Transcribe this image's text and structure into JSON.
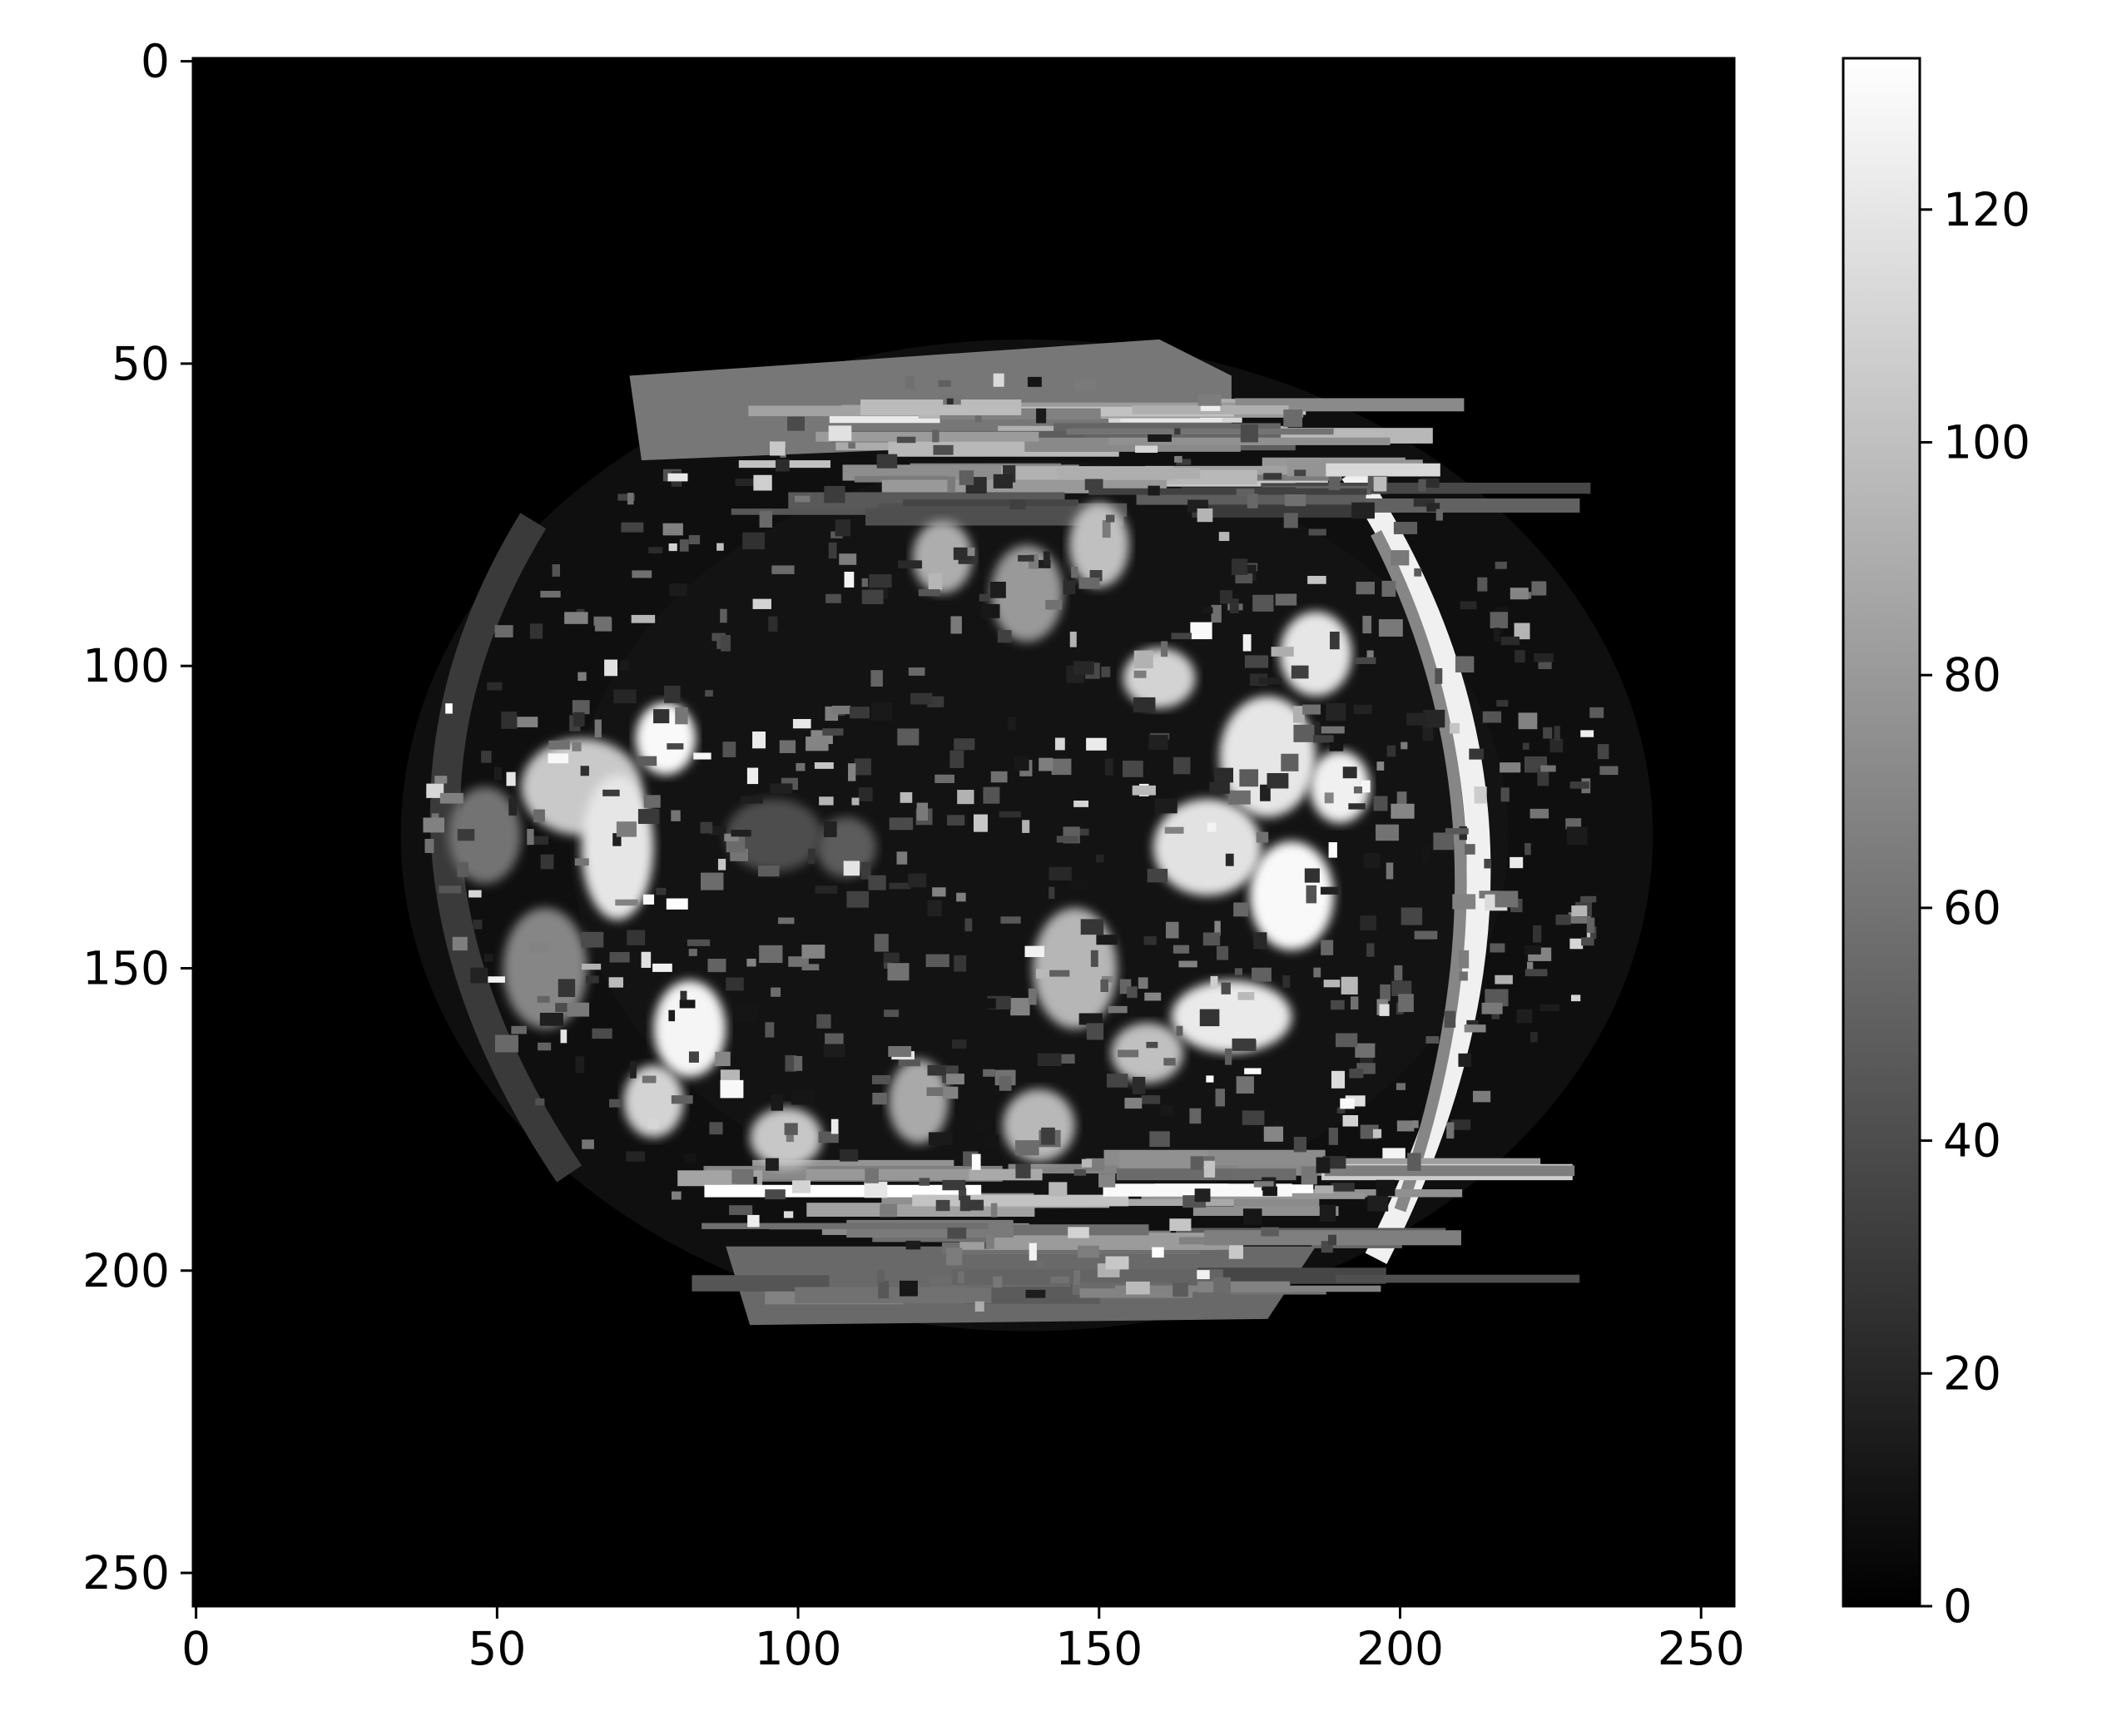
{
  "chart_data": [
    {
      "type": "heatmap",
      "title": "",
      "xlabel": "",
      "ylabel": "",
      "colormap": "gray",
      "grid": false,
      "image_shape": [
        256,
        256
      ],
      "xlim": [
        0,
        255
      ],
      "ylim": [
        255,
        0
      ],
      "x_ticks": [
        0,
        50,
        100,
        150,
        200,
        250
      ],
      "y_ticks": [
        0,
        50,
        100,
        150,
        200,
        250
      ],
      "x_tick_labels": [
        "0",
        "50",
        "100",
        "150",
        "200",
        "250"
      ],
      "y_tick_labels": [
        "0",
        "50",
        "100",
        "150",
        "200",
        "250"
      ],
      "value_range": [
        0,
        133
      ],
      "colorbar": {
        "ticks": [
          0,
          20,
          40,
          60,
          80,
          100,
          120
        ],
        "tick_labels": [
          "0",
          "20",
          "40",
          "60",
          "80",
          "100",
          "120"
        ],
        "min": 0,
        "max": 133
      },
      "content": "grayscale image of a glass fishbowl with bright highlights on a black background"
    }
  ]
}
